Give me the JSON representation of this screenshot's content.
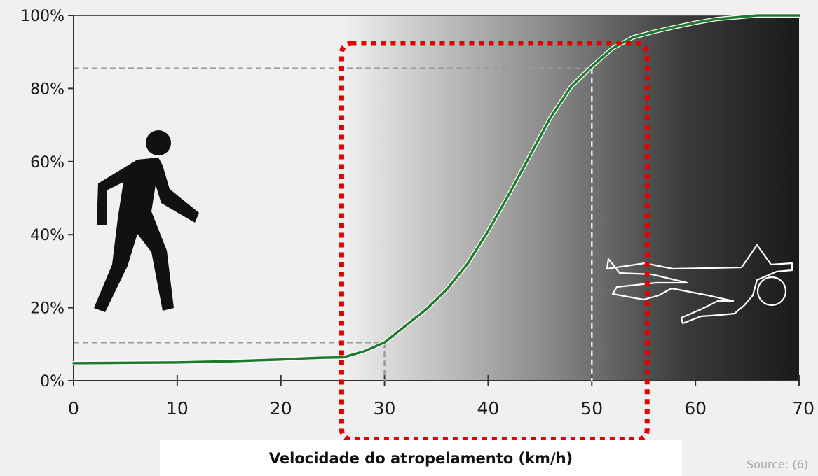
{
  "chart_data": {
    "type": "line",
    "title": "",
    "xlabel": "Velocidade do atropelamento (km/h)",
    "ylabel": "",
    "xlim": [
      0,
      70
    ],
    "ylim": [
      0,
      100
    ],
    "x_ticks": [
      "0",
      "10",
      "20",
      "30",
      "40",
      "50",
      "60",
      "70"
    ],
    "y_ticks": [
      "0%",
      "20%",
      "40%",
      "60%",
      "80%",
      "100%"
    ],
    "grid": false,
    "series": [
      {
        "color": "#1f7a2e",
        "x": [
          0,
          5,
          10,
          15,
          20,
          22,
          24,
          26,
          28,
          30,
          32,
          34,
          36,
          38,
          40,
          42,
          44,
          46,
          48,
          50,
          52,
          54,
          56,
          58,
          60,
          62,
          64,
          66,
          68,
          70
        ],
        "y": [
          4.8,
          4.9,
          5.0,
          5.3,
          5.8,
          6.1,
          6.3,
          6.4,
          8.0,
          10.5,
          15.0,
          19.5,
          25.0,
          32.0,
          41.0,
          51.0,
          61.5,
          72.0,
          80.5,
          86.0,
          91.0,
          94.0,
          95.5,
          96.8,
          98.0,
          99.0,
          99.5,
          100.0,
          100.0,
          100.0
        ]
      }
    ],
    "reference_lines": [
      {
        "x": 30,
        "y": 10.5
      },
      {
        "x": 50,
        "y": 85.5
      }
    ],
    "highlight_range": {
      "x": [
        26,
        55
      ],
      "color": "#e00000"
    },
    "background_gradient": {
      "from_x": 26,
      "to_x": 70,
      "from_color": "#f0f0f0",
      "to_color": "#1a1a1a"
    },
    "source": "Source: (6)"
  },
  "icons": {
    "walking": "walking-pedestrian-icon",
    "outline": "body-outline-icon"
  }
}
